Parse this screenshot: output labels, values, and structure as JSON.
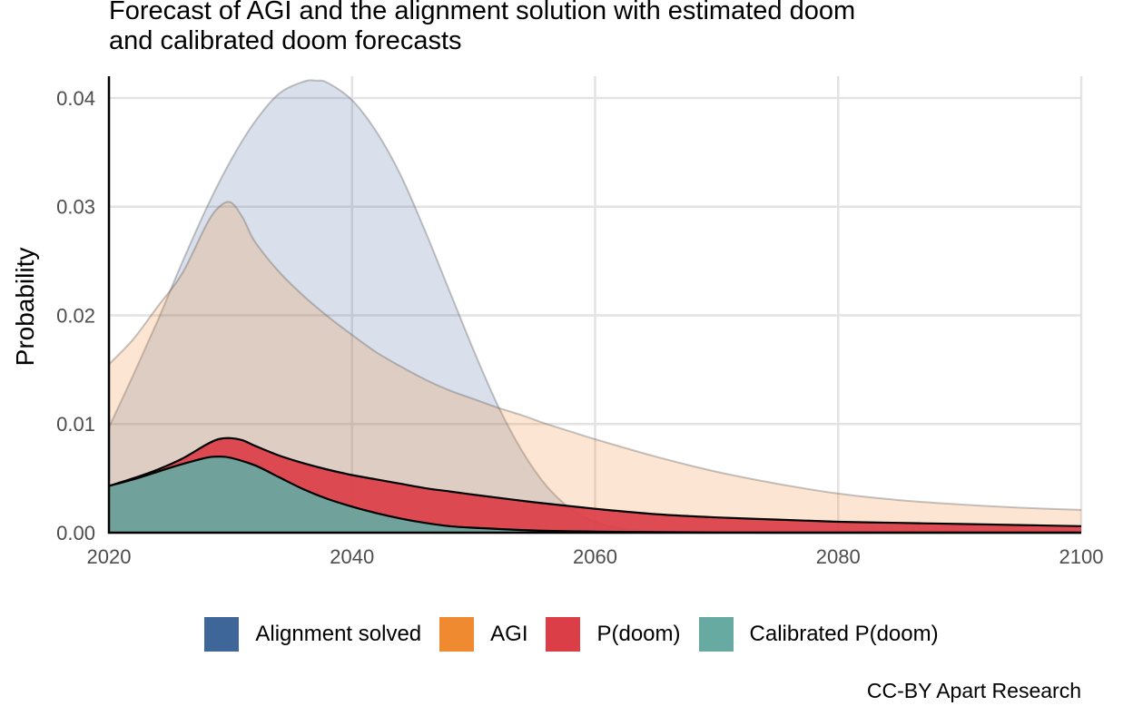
{
  "chart_data": {
    "type": "area",
    "title": "Forecast of AGI and the alignment solution with estimated doom\nand calibrated doom forecasts",
    "xlabel": "",
    "ylabel": "Probability",
    "xlim": [
      2020,
      2100
    ],
    "ylim": [
      0,
      0.042
    ],
    "x_ticks": [
      "2020",
      "2040",
      "2060",
      "2080",
      "2100"
    ],
    "y_ticks": [
      "0.00",
      "0.01",
      "0.02",
      "0.03",
      "0.04"
    ],
    "grid": true,
    "legend_position": "bottom",
    "caption": "CC-BY Apart Research",
    "series": [
      {
        "name": "Alignment solved",
        "color": "#3f6699",
        "fill_opacity": 0.2,
        "x": [
          2020,
          2022,
          2024,
          2026,
          2028,
          2030,
          2032,
          2034,
          2036,
          2037,
          2038,
          2040,
          2042,
          2044,
          2046,
          2048,
          2050,
          2052,
          2054,
          2056,
          2058,
          2060,
          2062,
          2064,
          2066,
          2068,
          2070,
          2075,
          2080,
          2090,
          2100
        ],
        "y": [
          0.0097,
          0.0145,
          0.0195,
          0.0248,
          0.0298,
          0.0342,
          0.0378,
          0.0404,
          0.0415,
          0.0416,
          0.0414,
          0.0398,
          0.0369,
          0.0329,
          0.0278,
          0.0223,
          0.0168,
          0.0117,
          0.0075,
          0.0043,
          0.0022,
          0.001,
          0.0004,
          0.00015,
          5e-05,
          2e-05,
          0.0,
          0.0,
          0.0,
          0.0,
          0.0
        ]
      },
      {
        "name": "AGI",
        "color": "#f08a30",
        "fill_opacity": 0.22,
        "x": [
          2020,
          2022,
          2024,
          2026,
          2028,
          2029,
          2030,
          2031,
          2032,
          2034,
          2036,
          2038,
          2040,
          2042,
          2044,
          2046,
          2048,
          2050,
          2052,
          2054,
          2056,
          2058,
          2060,
          2065,
          2070,
          2075,
          2080,
          2085,
          2090,
          2095,
          2100
        ],
        "y": [
          0.0155,
          0.0178,
          0.0208,
          0.0238,
          0.0283,
          0.0299,
          0.0304,
          0.029,
          0.0268,
          0.024,
          0.0218,
          0.0199,
          0.0182,
          0.0166,
          0.0153,
          0.0141,
          0.0131,
          0.0123,
          0.0115,
          0.0108,
          0.01,
          0.0093,
          0.0086,
          0.007,
          0.0056,
          0.0045,
          0.0036,
          0.003,
          0.0026,
          0.0023,
          0.0021
        ]
      },
      {
        "name": "P(doom)",
        "color": "#dc3e48",
        "fill_opacity": 0.92,
        "x": [
          2020,
          2022,
          2024,
          2026,
          2028,
          2029,
          2030,
          2031,
          2032,
          2034,
          2036,
          2038,
          2040,
          2042,
          2044,
          2046,
          2048,
          2050,
          2055,
          2060,
          2065,
          2070,
          2075,
          2080,
          2085,
          2090,
          2095,
          2100
        ],
        "y": [
          0.0043,
          0.005,
          0.0058,
          0.0068,
          0.0081,
          0.0086,
          0.0087,
          0.0085,
          0.008,
          0.0071,
          0.0064,
          0.0058,
          0.0053,
          0.0049,
          0.0045,
          0.0041,
          0.0038,
          0.0035,
          0.0028,
          0.0022,
          0.0017,
          0.0014,
          0.0012,
          0.001,
          0.0009,
          0.0008,
          0.0007,
          0.0006
        ]
      },
      {
        "name": "Calibrated P(doom)",
        "color": "#66aaa2",
        "fill_opacity": 0.92,
        "x": [
          2020,
          2022,
          2024,
          2026,
          2028,
          2029,
          2030,
          2032,
          2034,
          2036,
          2038,
          2040,
          2042,
          2044,
          2046,
          2048,
          2050,
          2055,
          2060,
          2065,
          2070,
          2075,
          2080,
          2090,
          2100
        ],
        "y": [
          0.0043,
          0.0049,
          0.0056,
          0.0063,
          0.0069,
          0.007,
          0.0069,
          0.0062,
          0.0051,
          0.004,
          0.0031,
          0.0024,
          0.0018,
          0.0013,
          0.0009,
          0.0006,
          0.00045,
          0.0002,
          0.0001,
          5e-05,
          2e-05,
          0.0,
          0.0,
          0.0,
          0.0
        ]
      }
    ]
  }
}
